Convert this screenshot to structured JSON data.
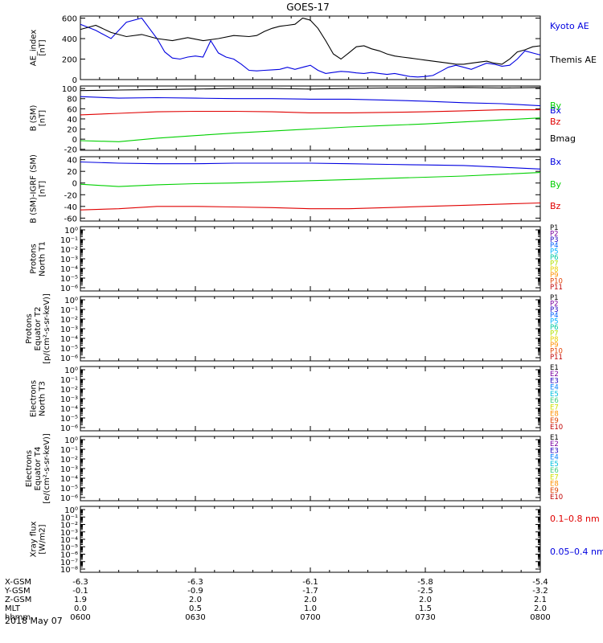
{
  "title": "GOES-17",
  "date_label": "2018 May 07",
  "colors": {
    "black": "#000000",
    "blue": "#0000e0",
    "green": "#00d000",
    "red": "#e00000"
  },
  "x_axis": {
    "time_ticks": [
      "0600",
      "0630",
      "0700",
      "0730",
      "0800"
    ],
    "orbit_rows": [
      {
        "label": "X-GSM",
        "values": [
          "-6.3",
          "-6.3",
          "-6.1",
          "-5.8",
          "-5.4"
        ]
      },
      {
        "label": "Y-GSM",
        "values": [
          "-0.1",
          "-0.9",
          "-1.7",
          "-2.5",
          "-3.2"
        ]
      },
      {
        "label": "Z-GSM",
        "values": [
          "1.9",
          "2.0",
          "2.0",
          "2.0",
          "2.1"
        ]
      },
      {
        "label": "MLT",
        "values": [
          "0.0",
          "0.5",
          "1.0",
          "1.5",
          "2.0"
        ]
      },
      {
        "label": "hhmm",
        "values": [
          "0600",
          "0630",
          "0700",
          "0730",
          "0800"
        ]
      }
    ]
  },
  "chart_data": [
    {
      "type": "line",
      "ylabel": [
        "AE_index",
        "[nT]"
      ],
      "ylim": [
        0,
        620
      ],
      "yticks": [
        "0",
        "200",
        "400",
        "600"
      ],
      "legend": [
        {
          "text": "Kyoto AE",
          "color": "#0000e0"
        },
        {
          "text": "Themis AE",
          "color": "#000000"
        }
      ],
      "series": [
        {
          "name": "Kyoto AE",
          "color": "#0000e0",
          "x": [
            0,
            4,
            8,
            12,
            16,
            18,
            20,
            22,
            24,
            26,
            28,
            30,
            32,
            34,
            36,
            38,
            40,
            42,
            44,
            46,
            48,
            50,
            52,
            54,
            56,
            58,
            60,
            62,
            64,
            66,
            68,
            70,
            72,
            74,
            76,
            78,
            80,
            82,
            84,
            86,
            88,
            90,
            92,
            94,
            96,
            98,
            100,
            102,
            104,
            106,
            108,
            110,
            112,
            114,
            116,
            118,
            120
          ],
          "values": [
            540,
            480,
            400,
            560,
            600,
            500,
            400,
            270,
            210,
            200,
            220,
            230,
            220,
            380,
            260,
            220,
            200,
            150,
            90,
            85,
            90,
            95,
            100,
            120,
            100,
            120,
            140,
            90,
            60,
            70,
            80,
            75,
            65,
            60,
            70,
            60,
            50,
            60,
            45,
            30,
            25,
            30,
            40,
            80,
            120,
            140,
            120,
            100,
            130,
            160,
            150,
            130,
            140,
            200,
            280,
            260,
            240
          ]
        },
        {
          "name": "Themis AE",
          "color": "#000000",
          "x": [
            0,
            4,
            8,
            12,
            16,
            20,
            24,
            28,
            32,
            36,
            40,
            44,
            46,
            48,
            50,
            52,
            54,
            56,
            58,
            60,
            62,
            64,
            66,
            68,
            70,
            72,
            74,
            76,
            78,
            80,
            82,
            84,
            86,
            88,
            90,
            92,
            94,
            96,
            98,
            100,
            102,
            104,
            106,
            108,
            110,
            112,
            114,
            116,
            118,
            120
          ],
          "values": [
            490,
            530,
            460,
            420,
            440,
            400,
            380,
            410,
            380,
            400,
            430,
            420,
            430,
            470,
            500,
            520,
            530,
            540,
            600,
            580,
            500,
            380,
            250,
            200,
            260,
            320,
            330,
            300,
            280,
            250,
            230,
            220,
            210,
            200,
            190,
            180,
            170,
            160,
            150,
            150,
            160,
            170,
            180,
            160,
            150,
            200,
            270,
            290,
            320,
            330
          ]
        }
      ]
    },
    {
      "type": "line",
      "ylabel": [
        "B (SM)",
        "[nT]"
      ],
      "ylim": [
        -22,
        105
      ],
      "yticks": [
        "-20",
        "0",
        "20",
        "40",
        "60",
        "80",
        "100"
      ],
      "legend": [
        {
          "text": "Bx",
          "color": "#0000e0"
        },
        {
          "text": "By",
          "color": "#00d000"
        },
        {
          "text": "Bz",
          "color": "#e00000"
        },
        {
          "text": "Bmag",
          "color": "#000000"
        }
      ],
      "series": [
        {
          "name": "Bmag",
          "color": "#000000",
          "x": [
            0,
            10,
            20,
            30,
            40,
            50,
            60,
            70,
            80,
            90,
            100,
            110,
            120
          ],
          "values": [
            96,
            97,
            98,
            99,
            100,
            100,
            99,
            100,
            101,
            101,
            102,
            101,
            102
          ]
        },
        {
          "name": "Bx",
          "color": "#0000e0",
          "x": [
            0,
            10,
            20,
            30,
            40,
            50,
            60,
            70,
            80,
            90,
            100,
            110,
            120
          ],
          "values": [
            84,
            81,
            82,
            81,
            80,
            80,
            79,
            79,
            77,
            75,
            72,
            70,
            66
          ]
        },
        {
          "name": "By",
          "color": "#00d000",
          "x": [
            0,
            10,
            20,
            30,
            40,
            50,
            60,
            70,
            80,
            90,
            100,
            110,
            120
          ],
          "values": [
            -3,
            -5,
            2,
            7,
            12,
            16,
            20,
            24,
            27,
            30,
            34,
            38,
            42
          ]
        },
        {
          "name": "Bz",
          "color": "#e00000",
          "x": [
            0,
            10,
            20,
            30,
            40,
            50,
            60,
            70,
            80,
            90,
            100,
            110,
            120
          ],
          "values": [
            48,
            51,
            54,
            55,
            55,
            54,
            52,
            52,
            53,
            54,
            56,
            58,
            58
          ]
        }
      ]
    },
    {
      "type": "line",
      "ylabel": [
        "B (SM)-IGRF (SM)",
        "[nT]"
      ],
      "ylim": [
        -65,
        45
      ],
      "yticks": [
        "-60",
        "-40",
        "-20",
        "0",
        "20",
        "40"
      ],
      "legend": [
        {
          "text": "Bx",
          "color": "#0000e0"
        },
        {
          "text": "By",
          "color": "#00d000"
        },
        {
          "text": "Bz",
          "color": "#e00000"
        }
      ],
      "series": [
        {
          "name": "Bx",
          "color": "#0000e0",
          "x": [
            0,
            10,
            20,
            30,
            40,
            50,
            60,
            70,
            80,
            90,
            100,
            110,
            120
          ],
          "values": [
            36,
            34,
            33,
            33,
            34,
            34,
            34,
            33,
            32,
            31,
            30,
            27,
            24
          ]
        },
        {
          "name": "By",
          "color": "#00d000",
          "x": [
            0,
            10,
            20,
            30,
            40,
            50,
            60,
            70,
            80,
            90,
            100,
            110,
            120
          ],
          "values": [
            -2,
            -6,
            -3,
            -1,
            0,
            2,
            4,
            6,
            8,
            10,
            12,
            15,
            18
          ]
        },
        {
          "name": "Bz",
          "color": "#e00000",
          "x": [
            0,
            10,
            20,
            30,
            40,
            50,
            60,
            70,
            80,
            90,
            100,
            110,
            120
          ],
          "values": [
            -46,
            -44,
            -40,
            -40,
            -41,
            -42,
            -44,
            -44,
            -42,
            -40,
            -38,
            -36,
            -34
          ]
        }
      ]
    },
    {
      "type": "line",
      "ylabel": [
        "Protons",
        "North T1"
      ],
      "yscale": "log",
      "yticks": [
        "10⁰",
        "10⁻¹",
        "10⁻²",
        "10⁻³",
        "10⁻⁴",
        "10⁻⁵",
        "10⁻⁶"
      ],
      "legend": [
        {
          "text": "P1",
          "color": "#000000"
        },
        {
          "text": "P2",
          "color": "#7a00a0"
        },
        {
          "text": "P3",
          "color": "#2000c0"
        },
        {
          "text": "P4",
          "color": "#0060ff"
        },
        {
          "text": "P5",
          "color": "#00b0ff"
        },
        {
          "text": "P6",
          "color": "#00c8a0"
        },
        {
          "text": "P7",
          "color": "#b0e000"
        },
        {
          "text": "P8",
          "color": "#e8d000"
        },
        {
          "text": "P9",
          "color": "#ff9000"
        },
        {
          "text": "P10",
          "color": "#e04000"
        },
        {
          "text": "P11",
          "color": "#c00000"
        }
      ],
      "series": []
    },
    {
      "type": "line",
      "ylabel": [
        "Protons",
        "Equator T2",
        "[p/(cm²-s-sr-keV)]"
      ],
      "yscale": "log",
      "yticks": [
        "10⁰",
        "10⁻¹",
        "10⁻²",
        "10⁻³",
        "10⁻⁴",
        "10⁻⁵",
        "10⁻⁶"
      ],
      "legend": [
        {
          "text": "P1",
          "color": "#000000"
        },
        {
          "text": "P2",
          "color": "#7a00a0"
        },
        {
          "text": "P3",
          "color": "#2000c0"
        },
        {
          "text": "P4",
          "color": "#0060ff"
        },
        {
          "text": "P5",
          "color": "#00b0ff"
        },
        {
          "text": "P6",
          "color": "#00c8a0"
        },
        {
          "text": "P7",
          "color": "#b0e000"
        },
        {
          "text": "P8",
          "color": "#e8d000"
        },
        {
          "text": "P9",
          "color": "#ff9000"
        },
        {
          "text": "P10",
          "color": "#e04000"
        },
        {
          "text": "P11",
          "color": "#c00000"
        }
      ],
      "series": []
    },
    {
      "type": "line",
      "ylabel": [
        "Electrons",
        "North T3"
      ],
      "yscale": "log",
      "yticks": [
        "10⁰",
        "10⁻¹",
        "10⁻²",
        "10⁻³",
        "10⁻⁴",
        "10⁻⁵",
        "10⁻⁶"
      ],
      "legend": [
        {
          "text": "E1",
          "color": "#000000"
        },
        {
          "text": "E2",
          "color": "#7a00a0"
        },
        {
          "text": "E3",
          "color": "#2000c0"
        },
        {
          "text": "E4",
          "color": "#0080ff"
        },
        {
          "text": "E5",
          "color": "#00c0e0"
        },
        {
          "text": "E6",
          "color": "#40d080"
        },
        {
          "text": "E7",
          "color": "#d0e000"
        },
        {
          "text": "E8",
          "color": "#ff9000"
        },
        {
          "text": "E9",
          "color": "#e04000"
        },
        {
          "text": "E10",
          "color": "#c00000"
        }
      ],
      "series": []
    },
    {
      "type": "line",
      "ylabel": [
        "Electrons",
        "Equator T4",
        "[e/(cm²-s-sr-keV)]"
      ],
      "yscale": "log",
      "yticks": [
        "10⁰",
        "10⁻¹",
        "10⁻²",
        "10⁻³",
        "10⁻⁴",
        "10⁻⁵",
        "10⁻⁶"
      ],
      "legend": [
        {
          "text": "E1",
          "color": "#000000"
        },
        {
          "text": "E2",
          "color": "#7a00a0"
        },
        {
          "text": "E3",
          "color": "#2000c0"
        },
        {
          "text": "E4",
          "color": "#0080ff"
        },
        {
          "text": "E5",
          "color": "#00c0e0"
        },
        {
          "text": "E6",
          "color": "#40d080"
        },
        {
          "text": "E7",
          "color": "#d0e000"
        },
        {
          "text": "E8",
          "color": "#ff9000"
        },
        {
          "text": "E9",
          "color": "#e04000"
        },
        {
          "text": "E10",
          "color": "#c00000"
        }
      ],
      "series": []
    },
    {
      "type": "line",
      "ylabel": [
        "Xray flux",
        "[W/m2]"
      ],
      "yscale": "log",
      "yticks": [
        "10⁰",
        "10⁻¹",
        "10⁻²",
        "10⁻³",
        "10⁻⁴",
        "10⁻⁵",
        "10⁻⁶",
        "10⁻⁷",
        "10⁻⁸"
      ],
      "legend": [
        {
          "text": "0.1–0.8 nm",
          "color": "#e00000"
        },
        {
          "text": "0.05–0.4 nm",
          "color": "#0000e0"
        }
      ],
      "series": []
    }
  ]
}
